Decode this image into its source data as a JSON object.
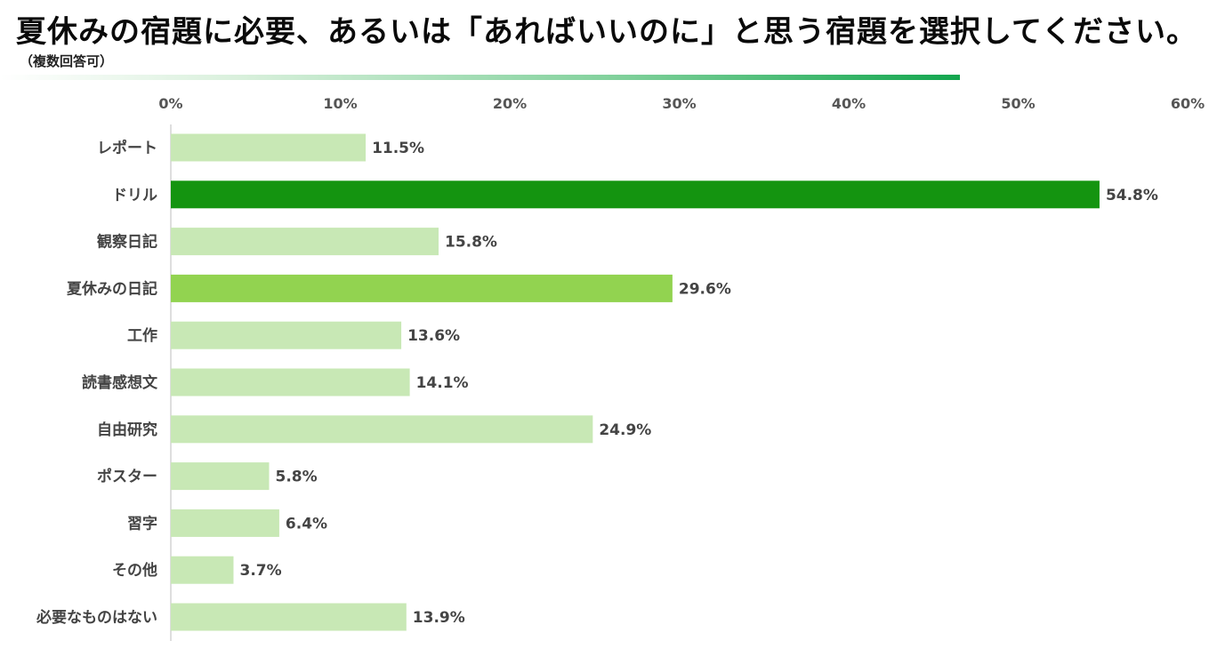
{
  "header": {
    "title": "夏休みの宿題に必要、あるいは「あればいいのに」と思う宿題を選択してください。",
    "subtitle": "（複数回答可）"
  },
  "colors": {
    "bar_default": "#c8e8b5",
    "bar_top": "#149410",
    "bar_second": "#92d350",
    "accent_line": "#12a64e"
  },
  "chart_data": {
    "type": "bar",
    "orientation": "horizontal",
    "title": "夏休みの宿題に必要、あるいは「あればいいのに」と思う宿題を選択してください。",
    "subtitle": "（複数回答可）",
    "categories": [
      "レポート",
      "ドリル",
      "観察日記",
      "夏休みの日記",
      "工作",
      "読書感想文",
      "自由研究",
      "ポスター",
      "習字",
      "その他",
      "必要なものはない"
    ],
    "values": [
      11.5,
      54.8,
      15.8,
      29.6,
      13.6,
      14.1,
      24.9,
      5.8,
      6.4,
      3.7,
      13.9
    ],
    "value_labels": [
      "11.5%",
      "54.8%",
      "15.8%",
      "29.6%",
      "13.6%",
      "14.1%",
      "24.9%",
      "5.8%",
      "6.4%",
      "3.7%",
      "13.9%"
    ],
    "xlim": [
      0,
      60
    ],
    "xticks": [
      "0%",
      "10%",
      "20%",
      "30%",
      "40%",
      "50%",
      "60%"
    ],
    "axis_position": "top",
    "grid": false,
    "legend": "none",
    "xlabel": "",
    "ylabel": ""
  }
}
